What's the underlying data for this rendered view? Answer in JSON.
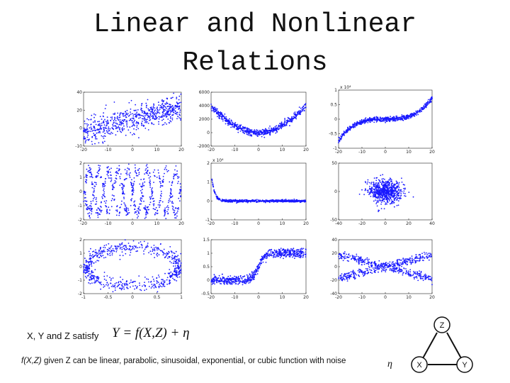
{
  "title": {
    "line1": "Linear and Nonlinear",
    "line2": "Relations"
  },
  "chart_data": [
    {
      "type": "scatter",
      "pattern": "linear",
      "xlim": [
        -20,
        20
      ],
      "ylim": [
        -10,
        40
      ],
      "xticks": [
        "-20",
        "-10",
        "0",
        "10",
        "20"
      ],
      "yticks": [
        "40",
        "20",
        "0",
        "-10"
      ]
    },
    {
      "type": "scatter",
      "pattern": "parabolic",
      "xlim": [
        -20,
        20
      ],
      "ylim": [
        -2000,
        6000
      ],
      "xticks": [
        "-20",
        "-10",
        "0",
        "10",
        "20"
      ],
      "yticks": [
        "6000",
        "4000",
        "2000",
        "0",
        "-2000"
      ]
    },
    {
      "type": "scatter",
      "pattern": "cubic",
      "xlim": [
        -20,
        20
      ],
      "ylim": [
        -1,
        1
      ],
      "exponent_label": "x 10⁴",
      "xticks": [
        "-20",
        "-10",
        "0",
        "10",
        "20"
      ],
      "yticks": [
        "1",
        "0.5",
        "0",
        "-0.5",
        "-1"
      ]
    },
    {
      "type": "scatter",
      "pattern": "sinusoidal",
      "xlim": [
        -20,
        20
      ],
      "ylim": [
        -2,
        2
      ],
      "xticks": [
        "-20",
        "-10",
        "0",
        "10",
        "20"
      ],
      "yticks": [
        "2",
        "1",
        "0",
        "-1",
        "-2"
      ]
    },
    {
      "type": "scatter",
      "pattern": "exponential",
      "xlim": [
        -20,
        20
      ],
      "ylim": [
        -1,
        2
      ],
      "exponent_label": "x 10⁴",
      "xticks": [
        "-20",
        "-10",
        "0",
        "10",
        "20"
      ],
      "yticks": [
        "2",
        "1",
        "0",
        "-1"
      ]
    },
    {
      "type": "scatter",
      "pattern": "blob",
      "xlim": [
        -40,
        40
      ],
      "ylim": [
        -50,
        50
      ],
      "xticks": [
        "-40",
        "-20",
        "0",
        "20",
        "40"
      ],
      "yticks": [
        "50",
        "0",
        "-50"
      ]
    },
    {
      "type": "scatter",
      "pattern": "ellipse",
      "xlim": [
        -1,
        1
      ],
      "ylim": [
        -2,
        2
      ],
      "xticks": [
        "-1",
        "-0.5",
        "0",
        "0.5",
        "1"
      ],
      "yticks": [
        "2",
        "1",
        "0",
        "-1",
        "-2"
      ]
    },
    {
      "type": "scatter",
      "pattern": "sigmoid",
      "xlim": [
        -20,
        20
      ],
      "ylim": [
        -0.5,
        1.5
      ],
      "xticks": [
        "-20",
        "-10",
        "0",
        "10",
        "20"
      ],
      "yticks": [
        "1.5",
        "1",
        "0.5",
        "0",
        "-0.5"
      ]
    },
    {
      "type": "scatter",
      "pattern": "crossing",
      "xlim": [
        -20,
        20
      ],
      "ylim": [
        -40,
        40
      ],
      "xticks": [
        "-20",
        "-10",
        "0",
        "10",
        "20"
      ],
      "yticks": [
        "40",
        "20",
        "0",
        "-20",
        "-40"
      ]
    }
  ],
  "caption": {
    "line1_text": "X, Y and Z satisfy",
    "formula_text": "Y = f(X,Z) + η",
    "line2_italic": "f(X,Z)",
    "line2_text": " given Z can be linear, parabolic, sinusoidal, exponential, or cubic function with noise",
    "eta": "η"
  },
  "diagram": {
    "node_top": "Z",
    "node_left": "X",
    "node_right": "Y"
  }
}
